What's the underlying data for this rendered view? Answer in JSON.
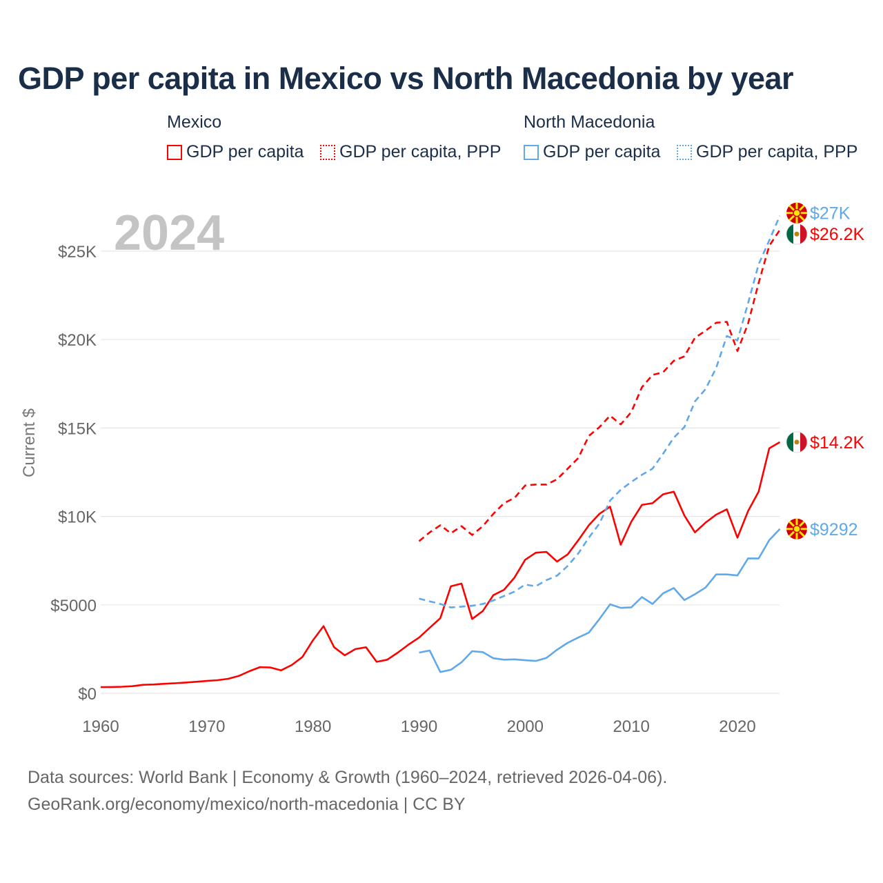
{
  "title": "GDP per capita in Mexico vs North Macedonia by year",
  "legend": {
    "groups": [
      {
        "name": "Mexico",
        "items": [
          "GDP per capita",
          "GDP per capita, PPP"
        ]
      },
      {
        "name": "North Macedonia",
        "items": [
          "GDP per capita",
          "GDP per capita, PPP"
        ]
      }
    ]
  },
  "year_label": "2024",
  "footer": {
    "line1": "Data sources: World Bank | Economy & Growth (1960–2024, retrieved 2026-04-06).",
    "line2": "GeoRank.org/economy/mexico/north-macedonia | CC BY"
  },
  "chart_data": {
    "type": "line",
    "title": "GDP per capita in Mexico vs North Macedonia by year",
    "ylabel": "Current $",
    "xlim": [
      1960,
      2024
    ],
    "ylim": [
      0,
      27000
    ],
    "xticks": [
      1960,
      1970,
      1980,
      1990,
      2000,
      2010,
      2020
    ],
    "xtick_labels": [
      "1960",
      "1970",
      "1980",
      "1990",
      "2000",
      "2010",
      "2020"
    ],
    "yticks": [
      0,
      5000,
      10000,
      15000,
      20000,
      25000
    ],
    "ytick_labels": [
      "$0",
      "$5000",
      "$10K",
      "$15K",
      "$20K",
      "$25K"
    ],
    "grid": true,
    "series": [
      {
        "name": "Mexico GDP per capita",
        "color": "#ff0000",
        "dash": false,
        "start": 1960,
        "end_label": "$14.2K",
        "flag": "mexico",
        "values": [
          350,
          353,
          370,
          400,
          480,
          500,
          540,
          570,
          610,
          650,
          700,
          740,
          820,
          980,
          1250,
          1480,
          1460,
          1300,
          1600,
          2050,
          3000,
          3800,
          2600,
          2150,
          2500,
          2600,
          1780,
          1900,
          2300,
          2750,
          3150,
          3700,
          4250,
          6050,
          6200,
          4200,
          4650,
          5550,
          5850,
          6550,
          7550,
          7950,
          7990,
          7450,
          7850,
          8650,
          9500,
          10150,
          10550,
          8400,
          9700,
          10650,
          10750,
          11250,
          11400,
          10050,
          9100,
          9650,
          10100,
          10400,
          8800,
          10300,
          11400,
          13850,
          14200
        ]
      },
      {
        "name": "Mexico GDP per capita, PPP",
        "color": "#ff0000",
        "dash": true,
        "start": 1990,
        "end_label": "$26.2K",
        "flag": "mexico",
        "values": [
          8600,
          9100,
          9500,
          9050,
          9450,
          8950,
          9450,
          10150,
          10750,
          11050,
          11750,
          11800,
          11800,
          12100,
          12700,
          13300,
          14550,
          15050,
          15700,
          15200,
          15900,
          17300,
          18000,
          18150,
          18800,
          19050,
          20100,
          20500,
          20950,
          21000,
          19350,
          20900,
          23200,
          25300,
          26200
        ]
      },
      {
        "name": "North Macedonia GDP per capita",
        "color": "#5fa8ea",
        "dash": false,
        "start": 1990,
        "end_label": "$9292",
        "flag": "north-macedonia",
        "values": [
          2300,
          2420,
          1200,
          1330,
          1750,
          2380,
          2330,
          1980,
          1900,
          1920,
          1870,
          1830,
          2000,
          2460,
          2850,
          3150,
          3430,
          4200,
          5030,
          4830,
          4860,
          5440,
          5050,
          5650,
          5950,
          5270,
          5600,
          5980,
          6720,
          6720,
          6660,
          7630,
          7620,
          8660,
          9292
        ]
      },
      {
        "name": "North Macedonia GDP per capita, PPP",
        "color": "#5fa8ea",
        "dash": true,
        "start": 1990,
        "end_label": "$27K",
        "flag": "north-macedonia",
        "values": [
          5350,
          5200,
          5050,
          4850,
          4900,
          4950,
          5050,
          5250,
          5500,
          5750,
          6150,
          6050,
          6400,
          6650,
          7200,
          7900,
          8800,
          9600,
          10900,
          11500,
          11950,
          12350,
          12700,
          13550,
          14450,
          15050,
          16500,
          17200,
          18400,
          20200,
          19950,
          22050,
          24250,
          25600,
          27000
        ]
      }
    ]
  }
}
